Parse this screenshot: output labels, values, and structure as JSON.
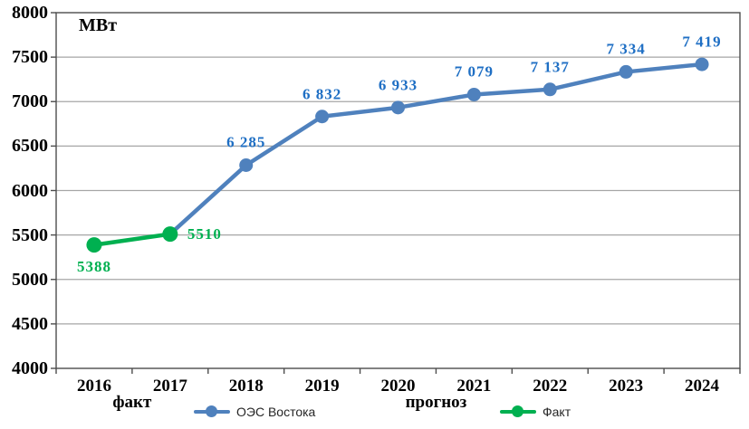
{
  "chart_data": {
    "type": "line",
    "title": "",
    "unit_label": "МВт",
    "x_categories": [
      "2016",
      "2017",
      "2018",
      "2019",
      "2020",
      "2021",
      "2022",
      "2023",
      "2024"
    ],
    "y_ticks": [
      4000,
      4500,
      5000,
      5500,
      6000,
      6500,
      7000,
      7500,
      8000
    ],
    "ylim": [
      4000,
      8000
    ],
    "grid": true,
    "legend_position": "bottom",
    "axis_annotations": [
      {
        "label": "факт",
        "between": [
          "2016",
          "2017"
        ]
      },
      {
        "label": "прогноз",
        "between": [
          "2020",
          "2021"
        ]
      }
    ],
    "colors": {
      "grid": "#A6A6A6",
      "border": "#4D4D4D",
      "axis_text": "#000000",
      "background": "#FFFFFF"
    },
    "series": [
      {
        "name": "ОЭС Востока",
        "line_color": "#4F81BD",
        "label_color": "#1F6FC4",
        "marker_radius": 7.5,
        "points": [
          {
            "x": "2017",
            "y": 5510
          },
          {
            "x": "2018",
            "y": 6285,
            "label": "6 285",
            "label_pos": "above"
          },
          {
            "x": "2019",
            "y": 6832,
            "label": "6 832",
            "label_pos": "above"
          },
          {
            "x": "2020",
            "y": 6933,
            "label": "6 933",
            "label_pos": "above"
          },
          {
            "x": "2021",
            "y": 7079,
            "label": "7 079",
            "label_pos": "above"
          },
          {
            "x": "2022",
            "y": 7137,
            "label": "7 137",
            "label_pos": "above"
          },
          {
            "x": "2023",
            "y": 7334,
            "label": "7 334",
            "label_pos": "above"
          },
          {
            "x": "2024",
            "y": 7419,
            "label": "7 419",
            "label_pos": "above"
          }
        ]
      },
      {
        "name": "Факт",
        "line_color": "#00B050",
        "label_color": "#00B050",
        "marker_radius": 8.5,
        "points": [
          {
            "x": "2016",
            "y": 5388,
            "label": "5388",
            "label_pos": "below"
          },
          {
            "x": "2017",
            "y": 5510,
            "label": "5510",
            "label_pos": "right"
          }
        ]
      }
    ]
  }
}
